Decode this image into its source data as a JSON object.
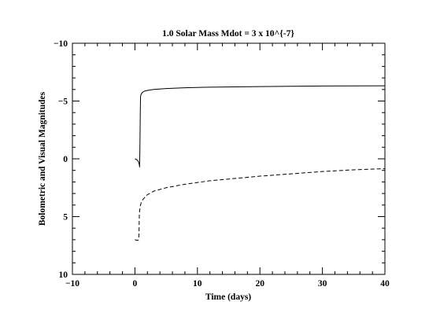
{
  "chart_data": {
    "type": "line",
    "title": "1.0 Solar Mass Mdot = 3 x 10^{-7}",
    "xlabel": "Time (days)",
    "ylabel": "Bolometric and Visual Magnitudes",
    "xlim": [
      -10,
      40
    ],
    "ylim": [
      10,
      -10
    ],
    "y_axis_inverted": true,
    "grid": false,
    "legend": "none",
    "x_ticks": [
      -10,
      0,
      10,
      20,
      30,
      40
    ],
    "y_ticks": [
      -10,
      -5,
      0,
      5,
      10
    ],
    "x_tick_labels": [
      "−10",
      "0",
      "10",
      "20",
      "30",
      "40"
    ],
    "y_tick_labels": [
      "−10",
      "−5",
      "0",
      "5",
      "10"
    ],
    "series": [
      {
        "style": "solid",
        "x": [
          0.0,
          0.25,
          0.45,
          0.6,
          0.7,
          0.75,
          0.8,
          0.85,
          0.9,
          1.0,
          1.2,
          1.5,
          2.0,
          3.0,
          5.0,
          8.0,
          12.0,
          20.0,
          30.0,
          40.0
        ],
        "y": [
          0.0,
          0.05,
          0.15,
          0.3,
          0.5,
          0.7,
          -1.0,
          -3.5,
          -5.4,
          -5.6,
          -5.75,
          -5.85,
          -5.92,
          -6.0,
          -6.08,
          -6.15,
          -6.2,
          -6.25,
          -6.3,
          -6.32
        ]
      },
      {
        "style": "dashed",
        "x": [
          0.0,
          0.3,
          0.5,
          0.6,
          0.65,
          0.7,
          0.75,
          0.85,
          1.0,
          1.3,
          2.0,
          3.0,
          5.0,
          8.0,
          12.0,
          16.0,
          20.0,
          25.0,
          30.0,
          35.0,
          40.0
        ],
        "y": [
          7.0,
          7.05,
          7.05,
          7.0,
          6.5,
          5.0,
          4.5,
          4.1,
          3.8,
          3.5,
          3.1,
          2.8,
          2.5,
          2.2,
          1.9,
          1.7,
          1.5,
          1.3,
          1.1,
          0.95,
          0.85
        ]
      }
    ]
  }
}
